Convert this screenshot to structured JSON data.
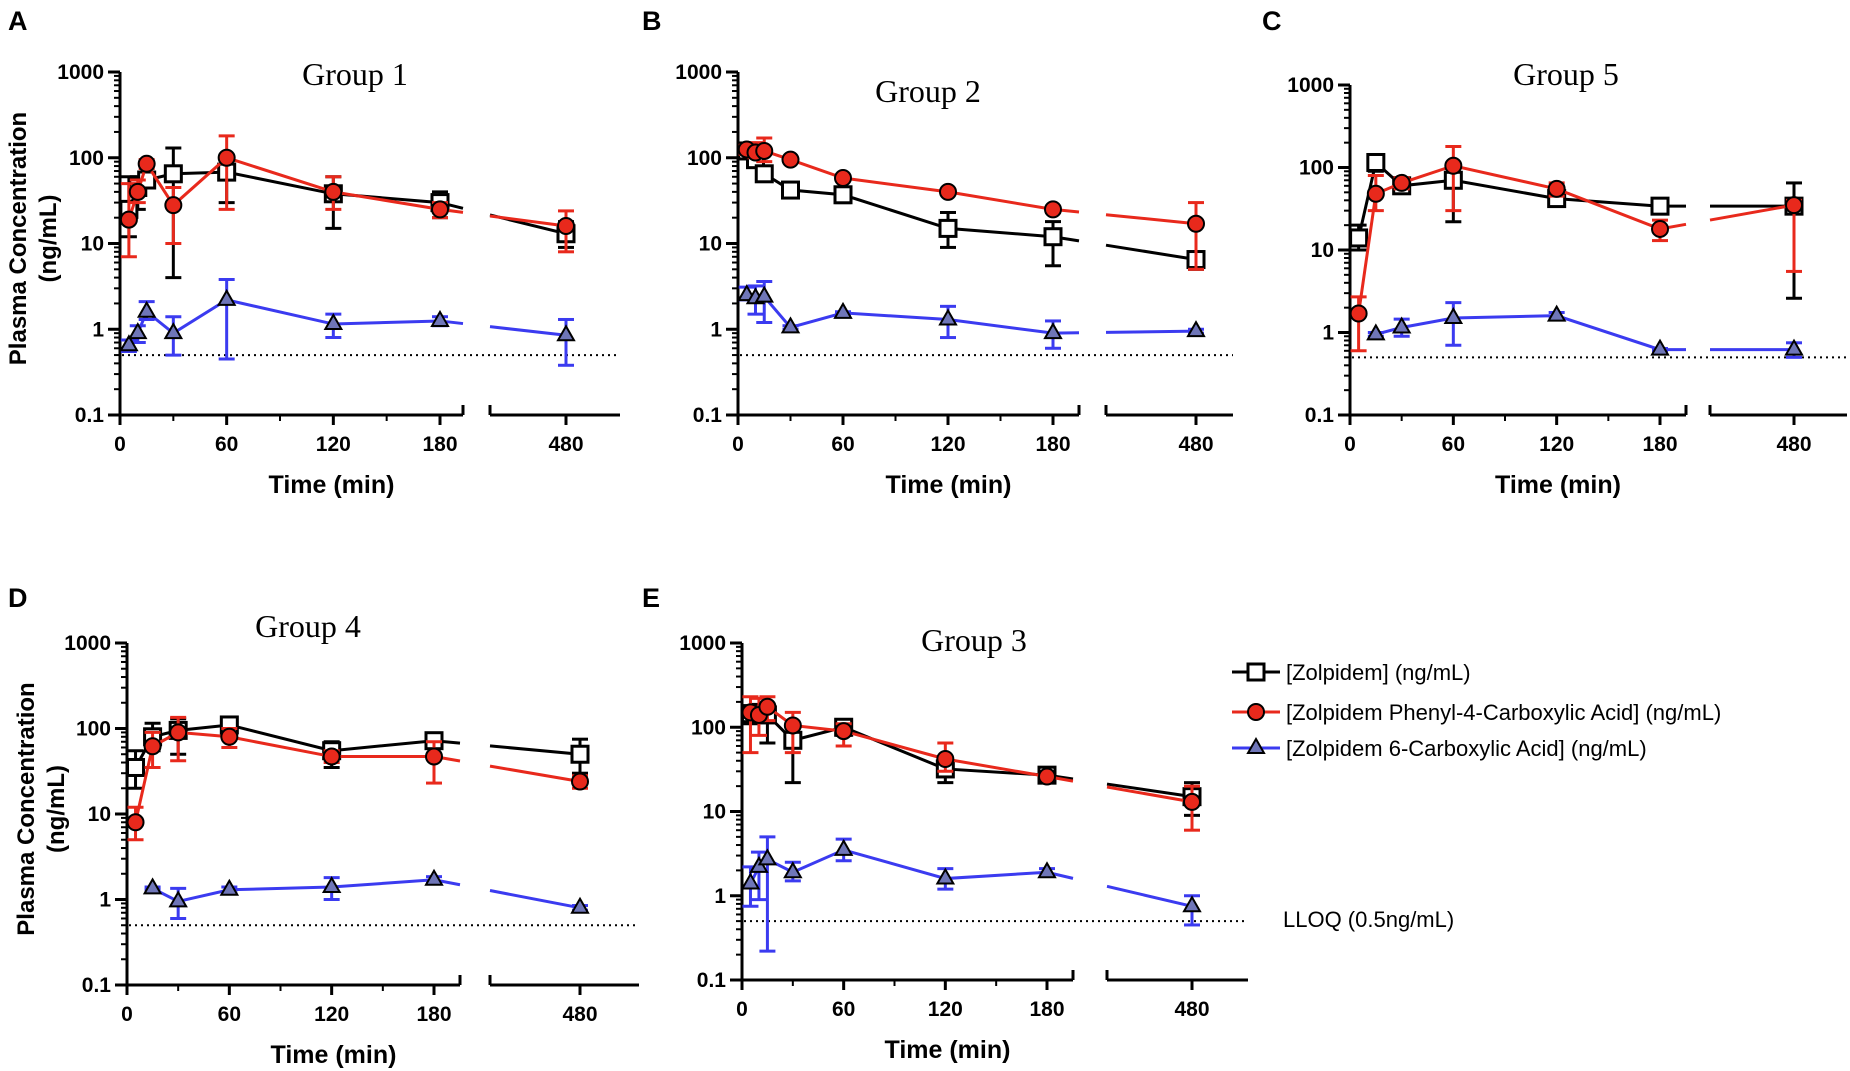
{
  "colors": {
    "zolpidem": "#000000",
    "phenyl": "#e8291c",
    "six": "#3b3bf0",
    "phenyl_fill": "#e8291c",
    "six_fill": "#6f76b8"
  },
  "legend": {
    "items": [
      {
        "key": "zolpidem",
        "label": "[Zolpidem] (ng/mL)"
      },
      {
        "key": "phenyl",
        "label": "[Zolpidem Phenyl-4-Carboxylic Acid] (ng/mL)"
      },
      {
        "key": "six",
        "label": "[Zolpidem 6-Carboxylic Acid] (ng/mL)"
      }
    ],
    "lloq_label": "LLOQ (0.5ng/mL)"
  },
  "chart_data": [
    {
      "type": "line",
      "panel": "A",
      "title": "Group 1",
      "xlabel": "Time (min)",
      "ylabel": "Plasma Concentration (ng/mL)",
      "yscale": "log",
      "ylim": [
        0.1,
        1000
      ],
      "yticks": [
        "0.1",
        "1",
        "10",
        "100",
        "1000"
      ],
      "xticks": [
        "0",
        "60",
        "120",
        "180",
        "480"
      ],
      "x": [
        5,
        10,
        15,
        30,
        60,
        120,
        180,
        480
      ],
      "lloq": 0.5,
      "series": [
        {
          "key": "zolpidem",
          "name": "[Zolpidem] (ng/mL)",
          "values": [
            25,
            45,
            55,
            65,
            68,
            38,
            30,
            13
          ],
          "err_lo": [
            12,
            25,
            45,
            4,
            30,
            15,
            20,
            9
          ],
          "err_hi": [
            60,
            60,
            65,
            130,
            100,
            60,
            40,
            18
          ]
        },
        {
          "key": "phenyl",
          "name": "[Zolpidem Phenyl-4-Carboxylic Acid] (ng/mL)",
          "values": [
            19,
            40,
            85,
            28,
            100,
            40,
            25,
            16
          ],
          "err_lo": [
            7,
            30,
            75,
            10,
            25,
            25,
            20,
            8
          ],
          "err_hi": [
            50,
            55,
            95,
            45,
            180,
            60,
            30,
            24
          ]
        },
        {
          "key": "six",
          "name": "[Zolpidem 6-Carboxylic Acid] (ng/mL)",
          "values": [
            0.65,
            0.9,
            1.6,
            0.9,
            2.2,
            1.15,
            1.25,
            0.85
          ],
          "err_lo": [
            0.55,
            0.7,
            1.3,
            0.5,
            0.45,
            0.8,
            1.1,
            0.38
          ],
          "err_hi": [
            0.75,
            1.1,
            2.1,
            1.4,
            3.8,
            1.5,
            1.4,
            1.3
          ]
        }
      ]
    },
    {
      "type": "line",
      "panel": "B",
      "title": "Group 2",
      "xlabel": "Time (min)",
      "ylabel": "",
      "yscale": "log",
      "ylim": [
        0.1,
        1000
      ],
      "yticks": [
        "0.1",
        "1",
        "10",
        "100",
        "1000"
      ],
      "xticks": [
        "0",
        "60",
        "120",
        "180",
        "480"
      ],
      "x": [
        5,
        10,
        15,
        30,
        60,
        120,
        180,
        480
      ],
      "lloq": 0.5,
      "series": [
        {
          "key": "zolpidem",
          "name": "[Zolpidem] (ng/mL)",
          "values": [
            120,
            95,
            65,
            42,
            37,
            15,
            12,
            6.5
          ],
          "err_lo": [
            110,
            80,
            55,
            40,
            30,
            9,
            5.5,
            5
          ],
          "err_hi": [
            130,
            110,
            80,
            45,
            45,
            23,
            18,
            8
          ]
        },
        {
          "key": "phenyl",
          "name": "[Zolpidem Phenyl-4-Carboxylic Acid] (ng/mL)",
          "values": [
            125,
            115,
            120,
            95,
            58,
            40,
            25,
            17
          ],
          "err_lo": [
            110,
            100,
            90,
            90,
            55,
            38,
            23,
            5
          ],
          "err_hi": [
            140,
            150,
            170,
            100,
            62,
            42,
            27,
            30
          ]
        },
        {
          "key": "six",
          "name": "[Zolpidem 6-Carboxylic Acid] (ng/mL)",
          "values": [
            2.5,
            2.3,
            2.4,
            1.05,
            1.55,
            1.3,
            0.9,
            0.95
          ],
          "err_lo": [
            2.2,
            1.5,
            1.2,
            1.0,
            1.5,
            0.8,
            0.6,
            0.9
          ],
          "err_hi": [
            3.1,
            3.2,
            3.6,
            1.1,
            1.6,
            1.85,
            1.25,
            1.0
          ]
        }
      ]
    },
    {
      "type": "line",
      "panel": "C",
      "title": "Group 5",
      "xlabel": "Time (min)",
      "ylabel": "",
      "yscale": "log",
      "ylim": [
        0.1,
        1000
      ],
      "yticks": [
        "0.1",
        "1",
        "10",
        "100",
        "1000"
      ],
      "xticks": [
        "0",
        "60",
        "120",
        "180",
        "480"
      ],
      "x": [
        5,
        15,
        30,
        60,
        120,
        180,
        480
      ],
      "lloq": 0.5,
      "series": [
        {
          "key": "zolpidem",
          "name": "[Zolpidem] (ng/mL)",
          "values": [
            14,
            115,
            60,
            70,
            42,
            34,
            34
          ],
          "err_lo": [
            10,
            90,
            50,
            22,
            35,
            32,
            2.6
          ],
          "err_hi": [
            20,
            140,
            75,
            110,
            50,
            36,
            65
          ]
        },
        {
          "key": "phenyl",
          "name": "[Zolpidem Phenyl-4-Carboxylic Acid] (ng/mL)",
          "values": [
            1.7,
            48,
            65,
            105,
            55,
            18,
            35
          ],
          "err_lo": [
            0.6,
            30,
            55,
            30,
            45,
            13,
            5.5
          ],
          "err_hi": [
            2.7,
            80,
            75,
            180,
            65,
            23,
            40
          ]
        },
        {
          "key": "six",
          "name": "[Zolpidem 6-Carboxylic Acid] (ng/mL)",
          "values": [
            null,
            0.95,
            1.15,
            1.5,
            1.6,
            0.62,
            0.62
          ],
          "err_lo": [
            null,
            0.9,
            0.9,
            0.7,
            1.5,
            0.6,
            0.5
          ],
          "err_hi": [
            null,
            1.0,
            1.45,
            2.3,
            1.75,
            0.64,
            0.75
          ]
        }
      ]
    },
    {
      "type": "line",
      "panel": "D",
      "title": "Group 4",
      "xlabel": "Time (min)",
      "ylabel": "Plasma Concentration (ng/mL)",
      "yscale": "log",
      "ylim": [
        0.1,
        1000
      ],
      "yticks": [
        "0.1",
        "1",
        "10",
        "100",
        "1000"
      ],
      "xticks": [
        "0",
        "60",
        "120",
        "180",
        "480"
      ],
      "x": [
        5,
        15,
        30,
        60,
        120,
        180,
        480
      ],
      "lloq": 0.5,
      "series": [
        {
          "key": "zolpidem",
          "name": "[Zolpidem] (ng/mL)",
          "values": [
            35,
            80,
            95,
            110,
            55,
            72,
            50
          ],
          "err_lo": [
            20,
            55,
            50,
            90,
            35,
            65,
            30
          ],
          "err_hi": [
            55,
            115,
            130,
            130,
            70,
            80,
            75
          ]
        },
        {
          "key": "phenyl",
          "name": "[Zolpidem Phenyl-4-Carboxylic Acid] (ng/mL)",
          "values": [
            8,
            62,
            90,
            80,
            47,
            47,
            24
          ],
          "err_lo": [
            5,
            35,
            42,
            60,
            40,
            23,
            20
          ],
          "err_hi": [
            12,
            90,
            135,
            100,
            55,
            70,
            28
          ]
        },
        {
          "key": "six",
          "name": "[Zolpidem 6-Carboxylic Acid] (ng/mL)",
          "values": [
            null,
            1.35,
            0.95,
            1.3,
            1.4,
            1.7,
            0.8
          ],
          "err_lo": [
            null,
            1.3,
            0.6,
            1.2,
            1.0,
            1.55,
            0.75
          ],
          "err_hi": [
            null,
            1.4,
            1.35,
            1.4,
            1.8,
            1.85,
            0.85
          ]
        }
      ]
    },
    {
      "type": "line",
      "panel": "E",
      "title": "Group 3",
      "xlabel": "Time (min)",
      "ylabel": "",
      "yscale": "log",
      "ylim": [
        0.1,
        1000
      ],
      "yticks": [
        "0.1",
        "1",
        "10",
        "100",
        "1000"
      ],
      "xticks": [
        "0",
        "60",
        "120",
        "180",
        "480"
      ],
      "x": [
        5,
        10,
        15,
        30,
        60,
        120,
        180,
        480
      ],
      "lloq": 0.5,
      "series": [
        {
          "key": "zolpidem",
          "name": "[Zolpidem] (ng/mL)",
          "values": [
            145,
            150,
            140,
            70,
            100,
            32,
            27,
            15
          ],
          "err_lo": [
            110,
            120,
            65,
            22,
            80,
            22,
            24,
            9
          ],
          "err_hi": [
            180,
            180,
            180,
            110,
            120,
            45,
            30,
            22
          ]
        },
        {
          "key": "phenyl",
          "name": "[Zolpidem Phenyl-4-Carboxylic Acid] (ng/mL)",
          "values": [
            150,
            140,
            175,
            105,
            90,
            42,
            26,
            13
          ],
          "err_lo": [
            50,
            80,
            120,
            50,
            60,
            30,
            24,
            6
          ],
          "err_hi": [
            230,
            220,
            230,
            150,
            110,
            65,
            28,
            20
          ]
        },
        {
          "key": "six",
          "name": "[Zolpidem 6-Carboxylic Acid] (ng/mL)",
          "values": [
            1.4,
            2.2,
            2.7,
            1.9,
            3.5,
            1.6,
            1.9,
            0.75
          ],
          "err_lo": [
            0.75,
            0.9,
            0.22,
            1.5,
            2.6,
            1.2,
            1.7,
            0.45
          ],
          "err_hi": [
            2.2,
            3.3,
            5.0,
            2.5,
            4.7,
            2.1,
            2.1,
            1.0
          ]
        }
      ]
    }
  ]
}
